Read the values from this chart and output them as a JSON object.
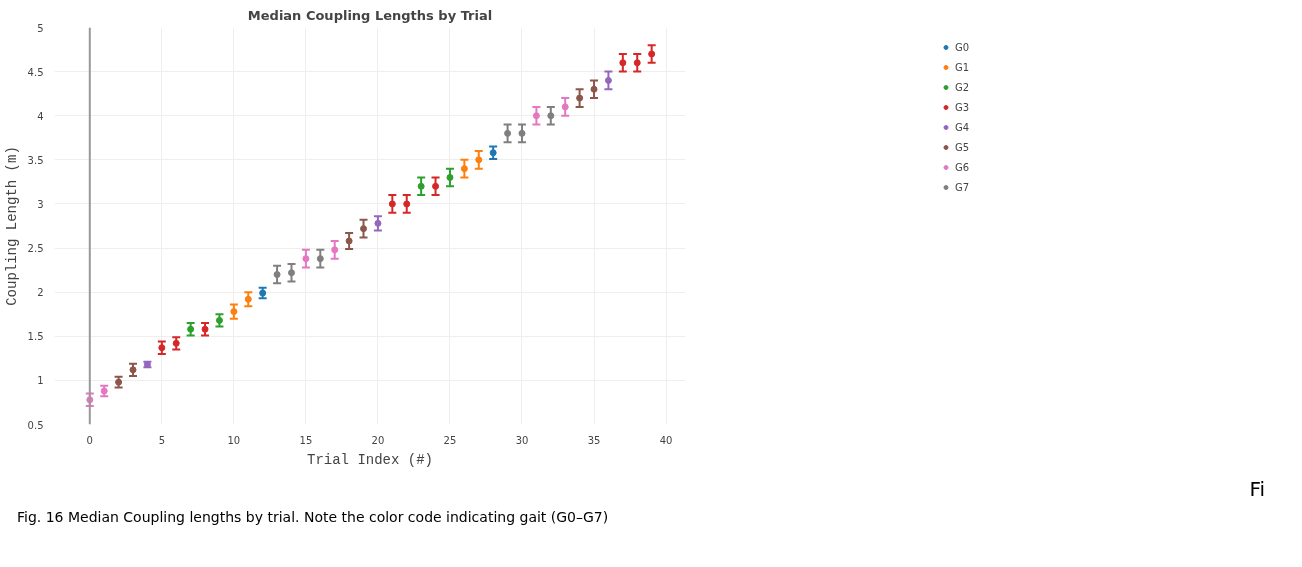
{
  "chart_data": {
    "type": "scatter",
    "title": "Median Coupling Lengths by Trial",
    "xlabel": "Trial Index (#)",
    "ylabel": "Coupling Length (m)",
    "xlim": [
      -2.45,
      41.35
    ],
    "xticks": [
      0,
      5,
      10,
      15,
      20,
      25,
      30,
      35,
      40
    ],
    "ylim": [
      0.5,
      5
    ],
    "yticks": [
      0.5,
      1,
      1.5,
      2,
      2.5,
      3,
      3.5,
      4,
      4.5,
      5
    ],
    "grid": true,
    "legend": "top right",
    "marker": "circle",
    "ref_lines": [
      {
        "axis": "x",
        "value": 0,
        "color": "#999999"
      }
    ],
    "series": [
      {
        "name": "G0",
        "color": "#1f77b4",
        "x": [
          12,
          28
        ],
        "values": [
          1.99,
          3.58
        ],
        "errors": [
          0.06,
          0.07
        ]
      },
      {
        "name": "G1",
        "color": "#ff7f0e",
        "x": [
          10,
          11,
          26,
          27
        ],
        "values": [
          1.78,
          1.92,
          3.4,
          3.5
        ],
        "errors": [
          0.08,
          0.08,
          0.1,
          0.1
        ]
      },
      {
        "name": "G2",
        "color": "#2ca02c",
        "x": [
          7,
          9,
          23,
          25
        ],
        "values": [
          1.58,
          1.68,
          3.2,
          3.3
        ],
        "errors": [
          0.07,
          0.07,
          0.1,
          0.1
        ]
      },
      {
        "name": "G3",
        "color": "#d62728",
        "x": [
          5,
          6,
          8,
          21,
          22,
          24,
          37,
          38,
          39
        ],
        "values": [
          1.37,
          1.42,
          1.58,
          3.0,
          3.0,
          3.2,
          4.6,
          4.6,
          4.7
        ],
        "errors": [
          0.07,
          0.07,
          0.07,
          0.1,
          0.1,
          0.1,
          0.1,
          0.1,
          0.1
        ]
      },
      {
        "name": "G4",
        "color": "#9467bd",
        "x": [
          4,
          20,
          36
        ],
        "values": [
          1.18,
          2.78,
          4.4
        ],
        "errors": [
          0.03,
          0.08,
          0.1
        ]
      },
      {
        "name": "G5",
        "color": "#8c564b",
        "x": [
          2,
          3,
          18,
          19,
          34,
          35
        ],
        "values": [
          0.98,
          1.12,
          2.58,
          2.72,
          4.2,
          4.3
        ],
        "errors": [
          0.06,
          0.07,
          0.09,
          0.1,
          0.1,
          0.1
        ]
      },
      {
        "name": "G6",
        "color": "#e377c2",
        "x": [
          0,
          1,
          15,
          17,
          31,
          33
        ],
        "values": [
          0.78,
          0.88,
          2.38,
          2.48,
          4.0,
          4.1
        ],
        "errors": [
          0.07,
          0.06,
          0.1,
          0.1,
          0.1,
          0.1
        ]
      },
      {
        "name": "G7",
        "color": "#7f7f7f",
        "x": [
          13,
          14,
          16,
          29,
          30,
          32
        ],
        "values": [
          2.2,
          2.22,
          2.38,
          3.8,
          3.8,
          4.0
        ],
        "errors": [
          0.1,
          0.1,
          0.1,
          0.1,
          0.1,
          0.1
        ]
      }
    ],
    "annotations": [
      "Fi",
      "Fig. 16 Median Coupling lengths by trial. Note the color code indicating gait (G0–G7)"
    ]
  }
}
